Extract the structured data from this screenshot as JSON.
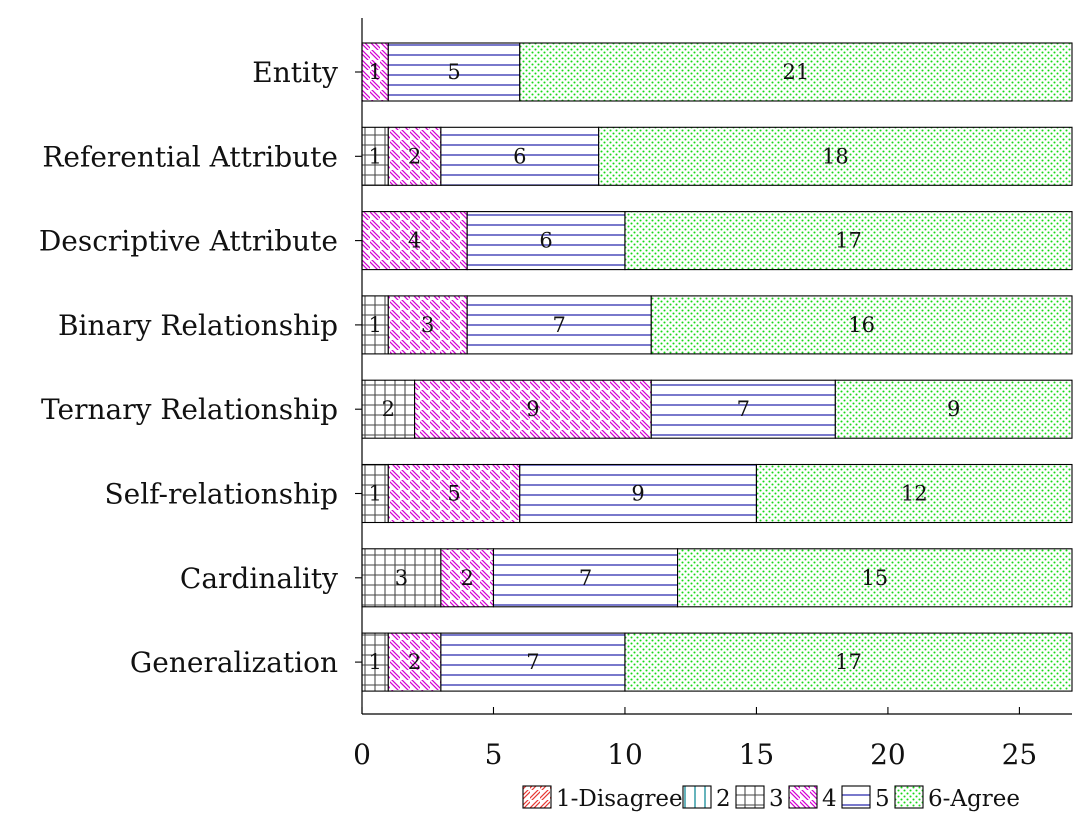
{
  "chart_data": {
    "type": "bar",
    "orientation": "horizontal",
    "stacked": true,
    "title": "",
    "xlabel": "",
    "ylabel": "",
    "xlim": [
      0,
      27
    ],
    "xticks": [
      0,
      5,
      10,
      15,
      20,
      25
    ],
    "grid": false,
    "legend_position": "bottom-right",
    "categories": [
      "Entity",
      "Referential Attribute",
      "Descriptive Attribute",
      "Binary Relationship",
      "Ternary Relationship",
      "Self-relationship",
      "Cardinality",
      "Generalization"
    ],
    "series": [
      {
        "name": "1-Disagree",
        "color": "#e53935",
        "pattern": "north-east-lines",
        "values": [
          0,
          0,
          0,
          0,
          0,
          0,
          0,
          0
        ]
      },
      {
        "name": "2",
        "color": "#00838f",
        "pattern": "vertical-lines",
        "values": [
          0,
          0,
          0,
          0,
          0,
          0,
          0,
          0
        ]
      },
      {
        "name": "3",
        "color": "#444444",
        "pattern": "grid",
        "values": [
          0,
          1,
          0,
          1,
          2,
          1,
          3,
          1
        ]
      },
      {
        "name": "4",
        "color": "#d400d4",
        "pattern": "north-west-lines",
        "values": [
          1,
          2,
          4,
          3,
          9,
          5,
          2,
          2
        ]
      },
      {
        "name": "5",
        "color": "#1f1fa8",
        "pattern": "horizontal-lines",
        "values": [
          5,
          6,
          6,
          7,
          7,
          9,
          7,
          7
        ]
      },
      {
        "name": "6-Agree",
        "color": "#19d919",
        "pattern": "crosshatch-dots",
        "values": [
          21,
          18,
          17,
          16,
          9,
          12,
          15,
          17
        ]
      }
    ]
  }
}
